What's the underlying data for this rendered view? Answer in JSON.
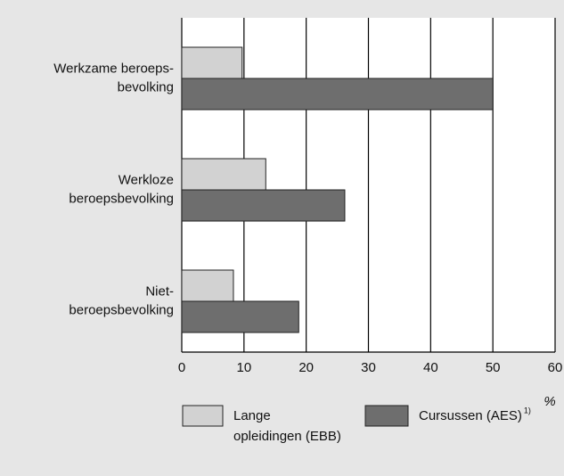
{
  "chart_data": {
    "type": "barh",
    "categories": [
      [
        "Werkzame beroeps-",
        "bevolking"
      ],
      [
        "Werkloze",
        "beroepsbevolking"
      ],
      [
        "Niet-",
        "beroepsbevolking"
      ]
    ],
    "series": [
      {
        "name": "Lange opleidingen (EBB)",
        "color": "#d2d2d2",
        "values": [
          9.7,
          13.5,
          8.3
        ]
      },
      {
        "name": "Cursussen (AES)",
        "name_note": "1)",
        "color": "#6e6e6e",
        "values": [
          50,
          26.2,
          18.8
        ]
      }
    ],
    "xlabel": "%",
    "xlim": [
      0,
      60
    ],
    "xticks": [
      0,
      10,
      20,
      30,
      40,
      50,
      60
    ],
    "grid": true
  }
}
